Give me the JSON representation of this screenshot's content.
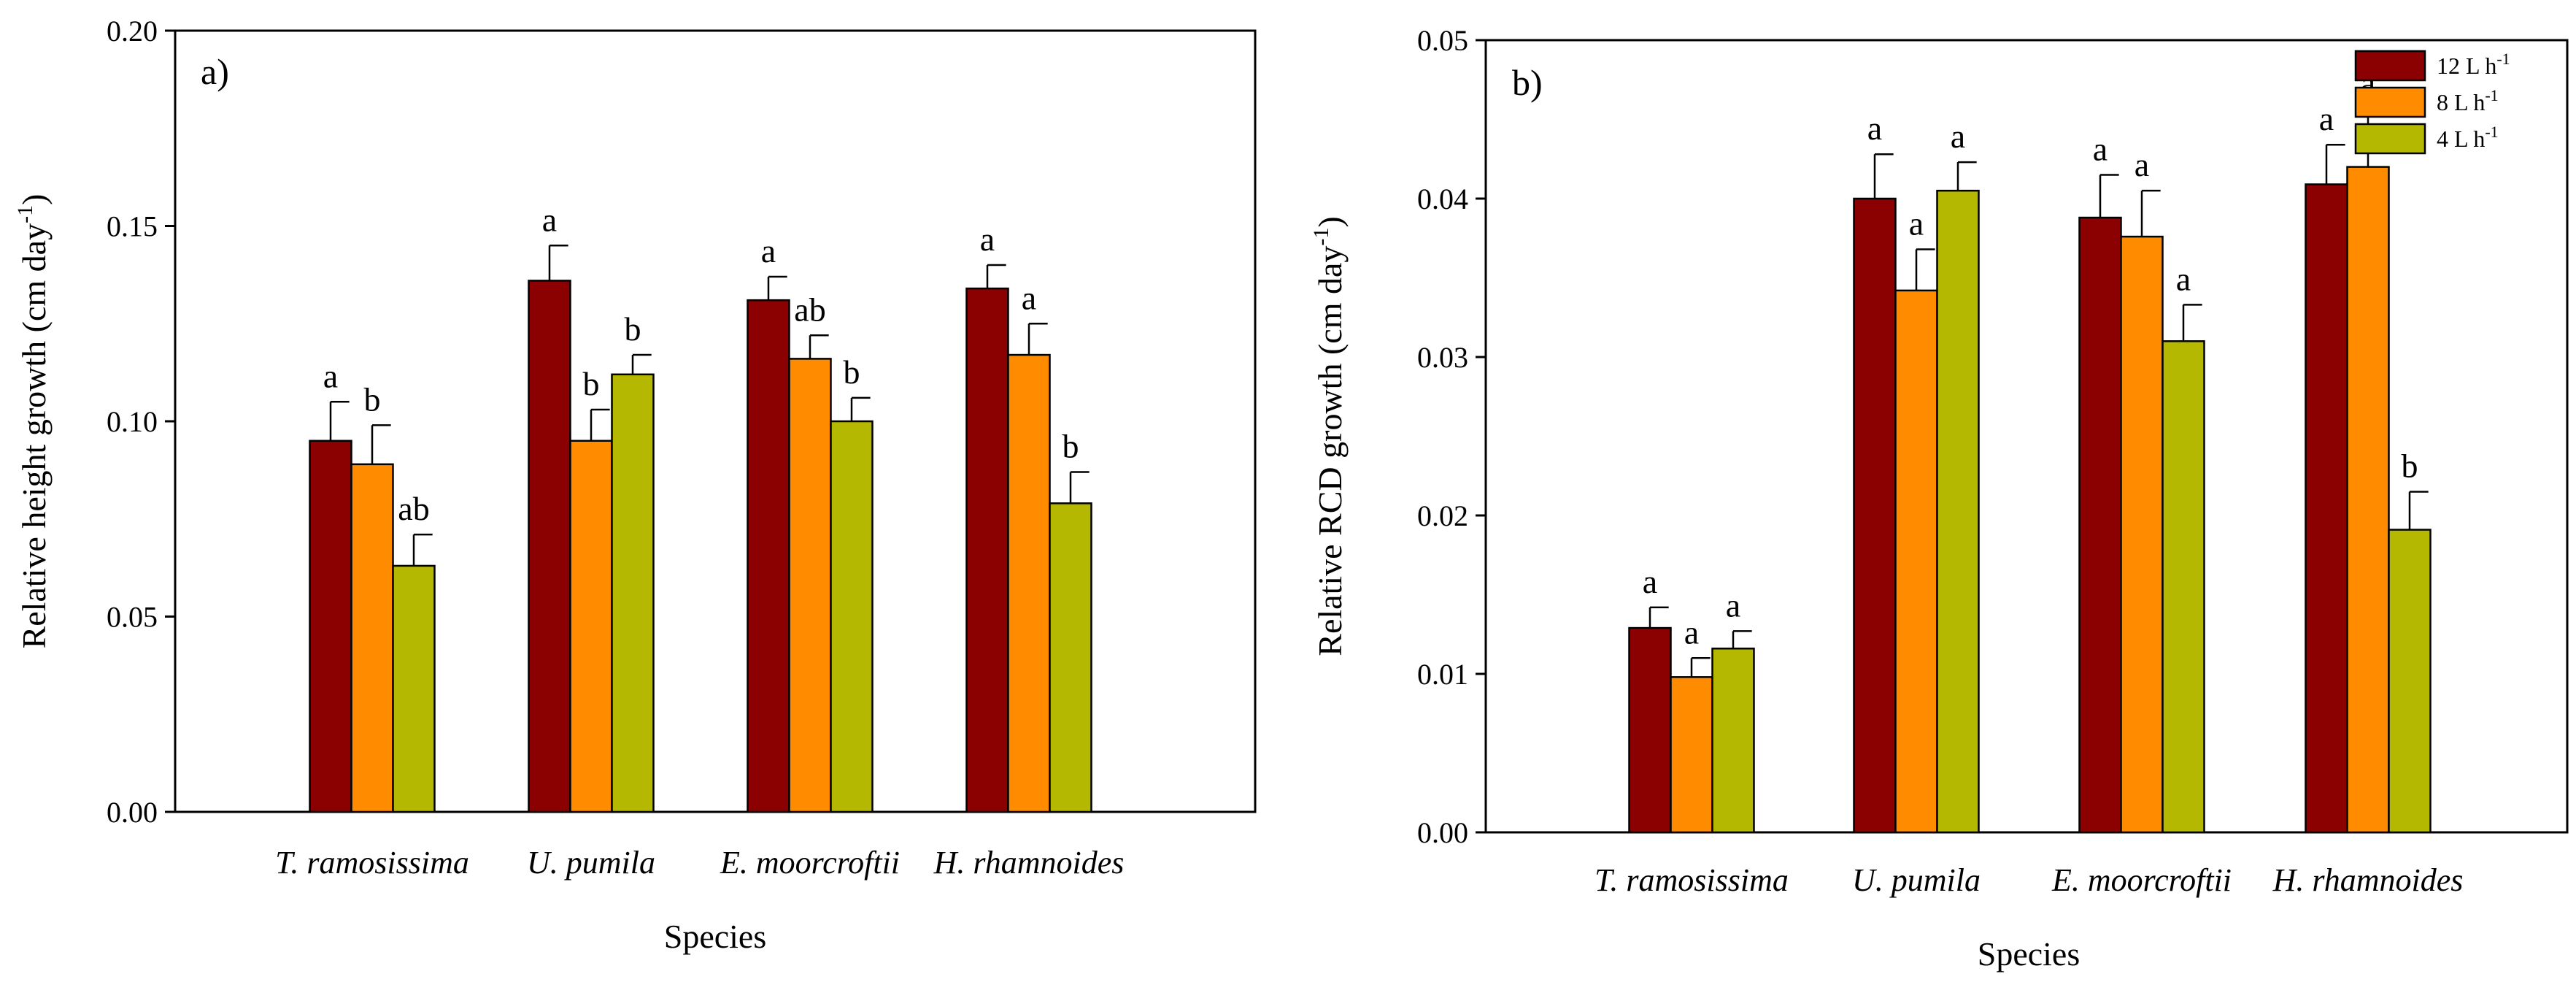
{
  "chart_data": [
    {
      "type": "bar",
      "panel_label": "a)",
      "title": "",
      "xlabel": "Species",
      "ylabel": "Relative height growth (cm day",
      "ylabel_sup": "-1",
      "ylabel_close": ")",
      "ylim": [
        0,
        0.2
      ],
      "yticks": [
        "0.00",
        "0.05",
        "0.10",
        "0.15",
        "0.20"
      ],
      "ytick_values": [
        0,
        0.05,
        0.1,
        0.15,
        0.2
      ],
      "categories": [
        "T. ramosissima",
        "U. pumila",
        "E. moorcroftii",
        "H. rhamnoides"
      ],
      "series": [
        {
          "name": "12 L h-1",
          "color": "#8b0000",
          "values": [
            0.095,
            0.136,
            0.131,
            0.134
          ],
          "errors": [
            0.01,
            0.009,
            0.006,
            0.006
          ],
          "letters": [
            "a",
            "a",
            "a",
            "a"
          ]
        },
        {
          "name": "8 L h-1",
          "color": "#ff8c00",
          "values": [
            0.089,
            0.095,
            0.116,
            0.117
          ],
          "errors": [
            0.01,
            0.008,
            0.006,
            0.008
          ],
          "letters": [
            "b",
            "b",
            "ab",
            "a"
          ]
        },
        {
          "name": "4 L h-1",
          "color": "#b5b800",
          "values": [
            0.063,
            0.112,
            0.1,
            0.079
          ],
          "errors": [
            0.008,
            0.005,
            0.006,
            0.008
          ],
          "letters": [
            "ab",
            "b",
            "b",
            "b"
          ]
        }
      ]
    },
    {
      "type": "bar",
      "panel_label": "b)",
      "title": "",
      "xlabel": "Species",
      "ylabel": "Relative RCD growth (cm day",
      "ylabel_sup": "-1",
      "ylabel_close": ")",
      "ylim": [
        0,
        0.05
      ],
      "yticks": [
        "0.00",
        "0.01",
        "0.02",
        "0.03",
        "0.04",
        "0.05"
      ],
      "ytick_values": [
        0,
        0.01,
        0.02,
        0.03,
        0.04,
        0.05
      ],
      "categories": [
        "T. ramosissima",
        "U. pumila",
        "E. moorcroftii",
        "H. rhamnoides"
      ],
      "legend_position": "top-right",
      "legend": [
        {
          "base": "12 L h",
          "sup": "-1",
          "color": "#8b0000"
        },
        {
          "base": "8 L h",
          "sup": "-1",
          "color": "#ff8c00"
        },
        {
          "base": "4 L h",
          "sup": "-1",
          "color": "#b5b800"
        }
      ],
      "series": [
        {
          "name": "12 L h-1",
          "color": "#8b0000",
          "values": [
            0.0129,
            0.04,
            0.0388,
            0.0409
          ],
          "errors": [
            0.0013,
            0.0028,
            0.0027,
            0.0025
          ],
          "letters": [
            "a",
            "a",
            "a",
            "a"
          ]
        },
        {
          "name": "8 L h-1",
          "color": "#ff8c00",
          "values": [
            0.0098,
            0.0342,
            0.0376,
            0.042
          ],
          "errors": [
            0.0012,
            0.0026,
            0.0029,
            0.0037
          ],
          "letters": [
            "a",
            "a",
            "a",
            "a"
          ]
        },
        {
          "name": "4 L h-1",
          "color": "#b5b800",
          "values": [
            0.0116,
            0.0405,
            0.031,
            0.0191
          ],
          "errors": [
            0.0011,
            0.0018,
            0.0023,
            0.0024
          ],
          "letters": [
            "a",
            "a",
            "a",
            "b"
          ]
        }
      ]
    }
  ]
}
